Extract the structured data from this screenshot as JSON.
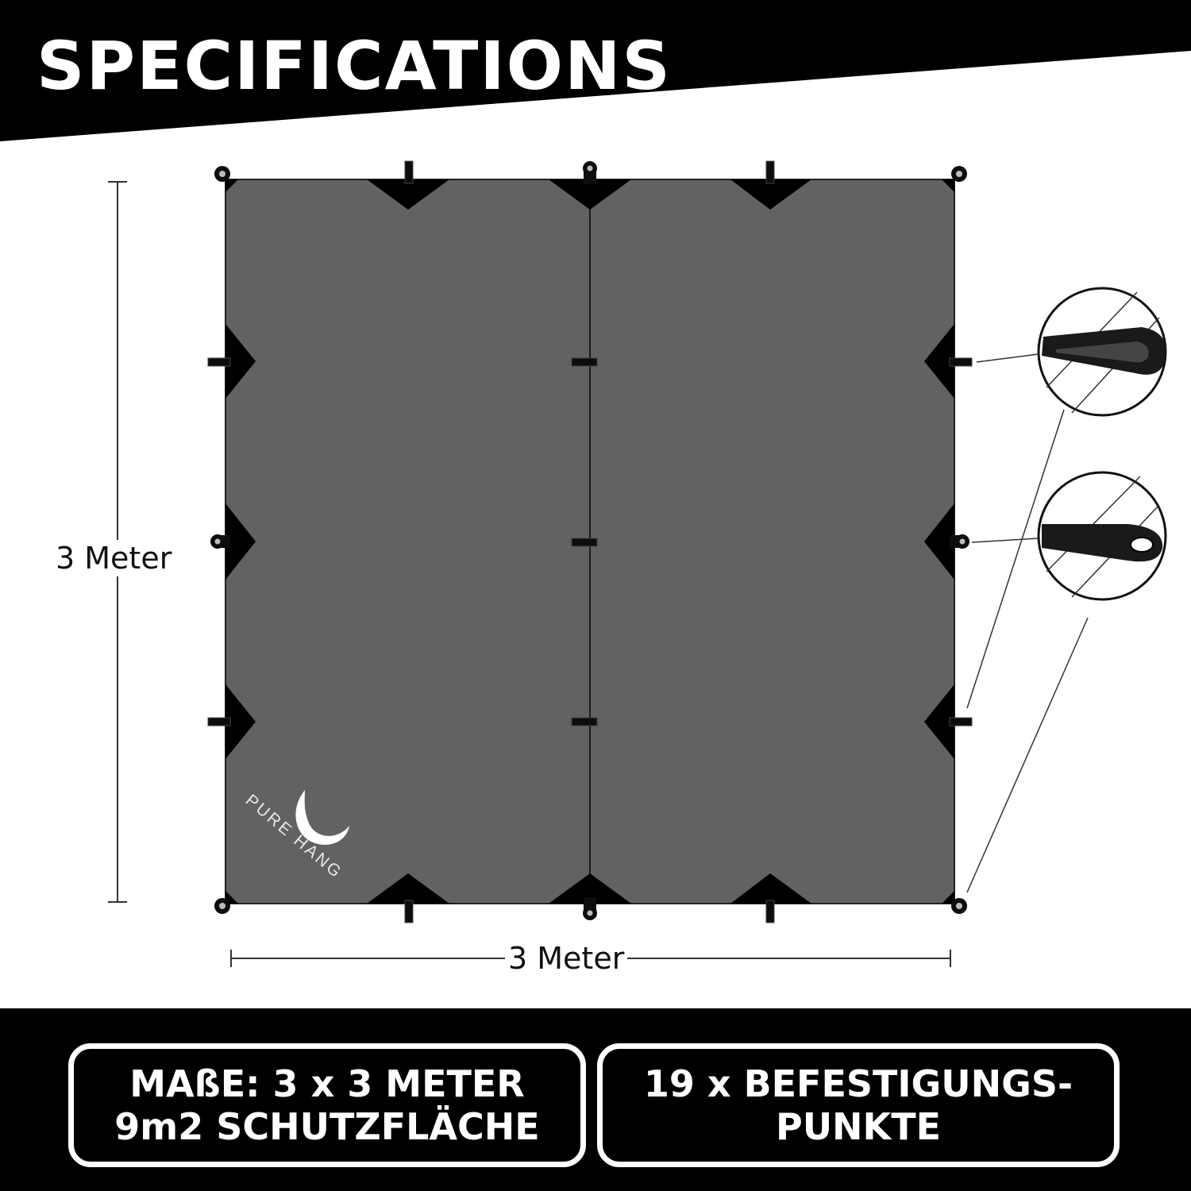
{
  "header": {
    "title": "SPECIFICATIONS"
  },
  "dimensions": {
    "height_label": "3 Meter",
    "width_label": "3 Meter"
  },
  "logo": {
    "text": "PURE HANG"
  },
  "specs": {
    "box_1": {
      "line_1": "MAßE: 3 x 3 METER",
      "line_2": "9m2 SCHUTZFLÄCHE"
    },
    "box_2": {
      "line_1": "19 x BEFESTIGUNGS-",
      "line_2": "PUNKTE"
    }
  },
  "colors": {
    "tarp": "#626264",
    "band": "#000000",
    "background": "#ffffff",
    "text_on_band": "#ffffff"
  },
  "icons": [
    "tarp-diagram",
    "loop-detail-icon",
    "grommet-tab-detail-icon",
    "moon-logo-icon"
  ]
}
